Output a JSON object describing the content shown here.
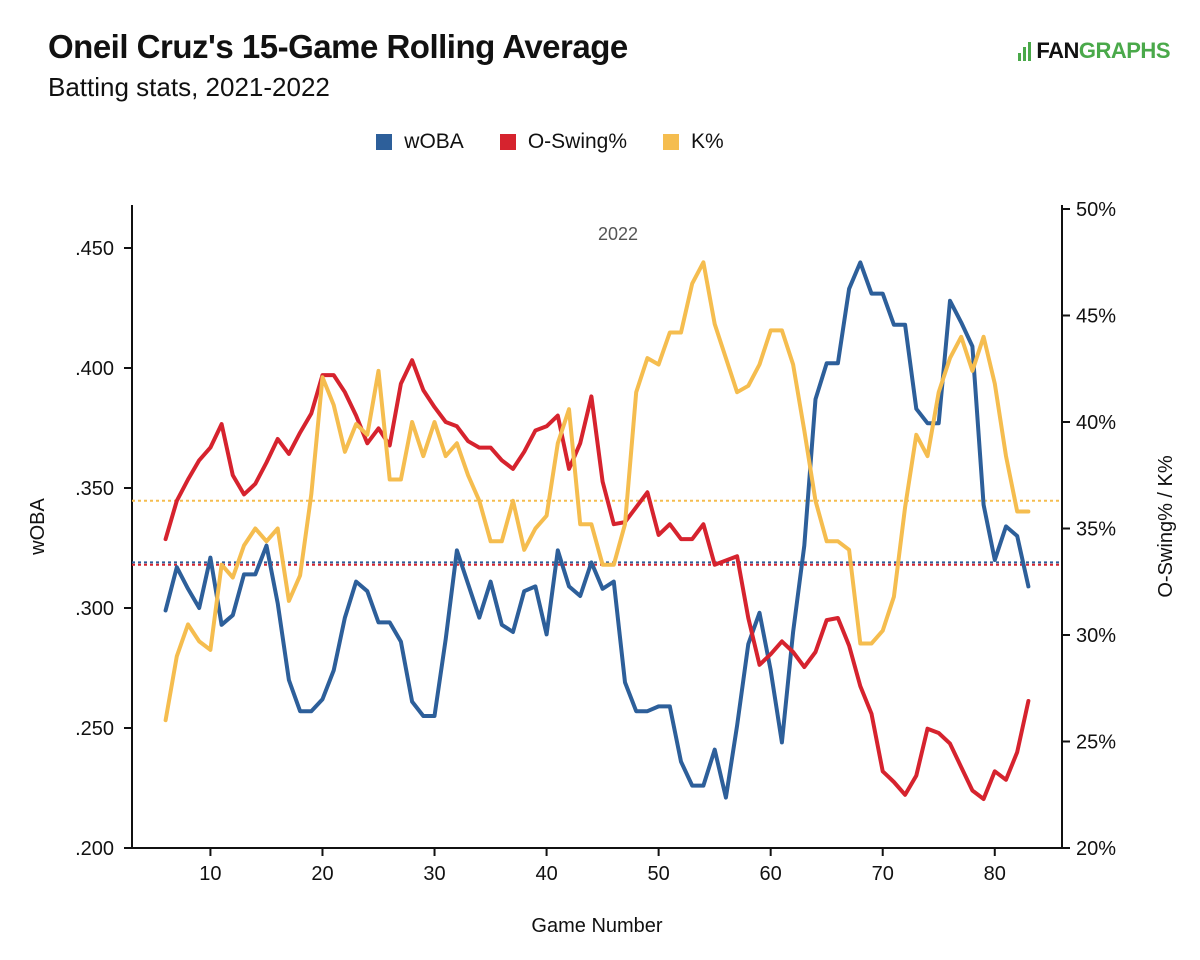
{
  "header": {
    "title": "Oneil Cruz's 15-Game Rolling Average",
    "subtitle": "Batting stats, 2021-2022",
    "logo_fan": "FAN",
    "logo_graphs": "GRAPHS"
  },
  "colors": {
    "woba": "#2d5f9a",
    "oswing": "#d6232e",
    "kpct": "#f5bd4f"
  },
  "chart_data": {
    "type": "line",
    "title": "Oneil Cruz's 15-Game Rolling Average",
    "subtitle": "Batting stats, 2021-2022",
    "xlabel": "Game Number",
    "ylabel_left": "wOBA",
    "ylabel_right": "O-Swing% / K%",
    "xlim": [
      3,
      86
    ],
    "ylim_left": [
      0.2,
      0.47
    ],
    "ylim_right": [
      20,
      50
    ],
    "x_ticks": [
      10,
      20,
      30,
      40,
      50,
      60,
      70,
      80
    ],
    "x_tick_labels": [
      "10",
      "20",
      "30",
      "40",
      "50",
      "60",
      "70",
      "80"
    ],
    "y_left_ticks": [
      0.2,
      0.25,
      0.3,
      0.35,
      0.4,
      0.45
    ],
    "y_left_tick_labels": [
      ".200",
      ".250",
      ".300",
      ".350",
      ".400",
      ".450"
    ],
    "y_right_ticks": [
      20,
      25,
      30,
      35,
      40,
      45,
      50
    ],
    "y_right_tick_labels": [
      "20%",
      "25%",
      "30%",
      "35%",
      "40%",
      "45%",
      "50%"
    ],
    "grid": false,
    "legend_position": "top-center",
    "annotation": "2022",
    "x": [
      6,
      7,
      8,
      9,
      10,
      11,
      12,
      13,
      14,
      15,
      16,
      17,
      18,
      19,
      20,
      21,
      22,
      23,
      24,
      25,
      26,
      27,
      28,
      29,
      30,
      31,
      32,
      33,
      34,
      35,
      36,
      37,
      38,
      39,
      40,
      41,
      42,
      43,
      44,
      45,
      46,
      47,
      48,
      49,
      50,
      51,
      52,
      53,
      54,
      55,
      56,
      57,
      58,
      59,
      60,
      61,
      62,
      63,
      64,
      65,
      66,
      67,
      68,
      69,
      70,
      71,
      72,
      73,
      74,
      75,
      76,
      77,
      78,
      79,
      80,
      81,
      82,
      83
    ],
    "series": [
      {
        "name": "wOBA",
        "axis": "left",
        "values": [
          0.299,
          0.317,
          0.308,
          0.3,
          0.321,
          0.293,
          0.297,
          0.314,
          0.314,
          0.326,
          0.302,
          0.27,
          0.257,
          0.257,
          0.262,
          0.274,
          0.296,
          0.311,
          0.307,
          0.294,
          0.294,
          0.286,
          0.261,
          0.255,
          0.255,
          0.287,
          0.324,
          0.31,
          0.296,
          0.311,
          0.293,
          0.29,
          0.307,
          0.309,
          0.289,
          0.324,
          0.309,
          0.305,
          0.319,
          0.308,
          0.311,
          0.269,
          0.257,
          0.257,
          0.259,
          0.259,
          0.236,
          0.226,
          0.226,
          0.241,
          0.221,
          0.251,
          0.285,
          0.298,
          0.274,
          0.244,
          0.29,
          0.326,
          0.387,
          0.402,
          0.402,
          0.433,
          0.444,
          0.431,
          0.431,
          0.418,
          0.418,
          0.383,
          0.377,
          0.377,
          0.428,
          0.419,
          0.409,
          0.343,
          0.32,
          0.334,
          0.33,
          0.309
        ]
      },
      {
        "name": "O-Swing%",
        "axis": "right",
        "values": [
          34.5,
          36.3,
          37.3,
          38.2,
          38.8,
          39.9,
          37.5,
          36.6,
          37.1,
          38.1,
          39.2,
          38.5,
          39.5,
          40.4,
          42.2,
          42.2,
          41.4,
          40.3,
          39.0,
          39.7,
          38.9,
          41.8,
          42.9,
          41.5,
          40.7,
          40.0,
          39.8,
          39.1,
          38.8,
          38.8,
          38.2,
          37.8,
          38.6,
          39.6,
          39.8,
          40.3,
          37.8,
          39.0,
          41.2,
          37.2,
          35.2,
          35.3,
          36.0,
          36.7,
          34.7,
          35.2,
          34.5,
          34.5,
          35.2,
          33.3,
          33.5,
          33.7,
          30.8,
          28.6,
          29.1,
          29.7,
          29.2,
          28.5,
          29.2,
          30.7,
          30.8,
          29.5,
          27.6,
          26.3,
          23.6,
          23.1,
          22.5,
          23.4,
          25.6,
          25.4,
          24.9,
          23.8,
          22.7,
          22.3,
          23.6,
          23.2,
          24.5,
          26.9
        ]
      },
      {
        "name": "K%",
        "axis": "right",
        "values": [
          26.0,
          29.0,
          30.5,
          29.7,
          29.3,
          33.3,
          32.7,
          34.2,
          35.0,
          34.4,
          35.0,
          31.6,
          32.8,
          36.6,
          42.1,
          40.8,
          38.6,
          39.9,
          39.4,
          42.4,
          37.3,
          37.3,
          40.0,
          38.4,
          40.0,
          38.4,
          39.0,
          37.5,
          36.3,
          34.4,
          34.4,
          36.3,
          34.0,
          35.0,
          35.6,
          39.0,
          40.6,
          35.2,
          35.2,
          33.3,
          33.3,
          35.2,
          41.4,
          43.0,
          42.7,
          44.2,
          44.2,
          46.5,
          47.5,
          44.6,
          43.0,
          41.4,
          41.7,
          42.7,
          44.3,
          44.3,
          42.7,
          39.6,
          36.3,
          34.4,
          34.4,
          34.0,
          29.6,
          29.6,
          30.2,
          31.8,
          36.0,
          39.4,
          38.4,
          41.4,
          43.0,
          44.0,
          42.4,
          44.0,
          41.8,
          38.4,
          35.8,
          35.8
        ]
      }
    ],
    "reference_lines": [
      {
        "series": "wOBA",
        "axis": "left",
        "value": 0.319
      },
      {
        "series": "O-Swing%",
        "axis": "right",
        "value": 33.3
      },
      {
        "series": "K%",
        "axis": "right",
        "value": 36.3
      }
    ]
  }
}
